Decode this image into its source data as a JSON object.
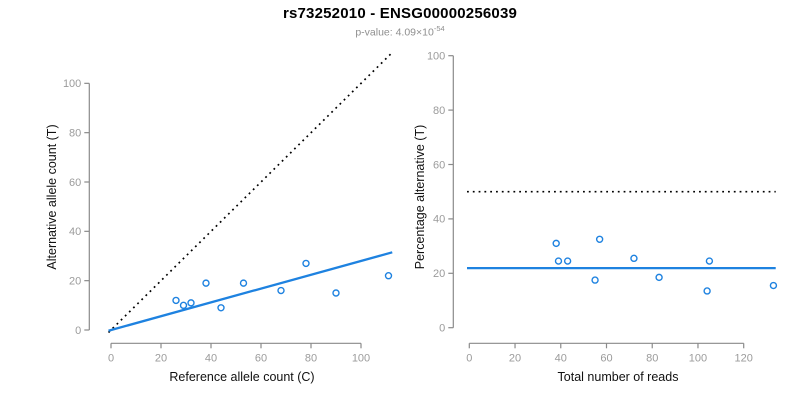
{
  "header": {
    "title": "rs73252010 - ENSG00000256039",
    "pvalue_base": "p-value: 4.09×10",
    "pvalue_exponent": "-54"
  },
  "colors": {
    "accent_blue": "#1E82E0",
    "line_black": "#000000",
    "axis": "#8a8a8a",
    "tick_label": "#9b9b9b",
    "title_text": "#000000",
    "subtitle_text": "#8f8f8f"
  },
  "chart_data": [
    {
      "id": "allele-counts-scatter",
      "type": "scatter",
      "xlabel": "Reference allele count (C)",
      "ylabel": "Alternative allele count (T)",
      "x_ticks": [
        0,
        20,
        40,
        60,
        80,
        100
      ],
      "y_ticks": [
        0,
        20,
        40,
        60,
        80,
        100
      ],
      "xlim": [
        -9,
        112
      ],
      "ylim": [
        -5,
        112
      ],
      "grid": false,
      "legend": null,
      "points": [
        [
          26,
          12
        ],
        [
          29,
          10
        ],
        [
          32,
          11
        ],
        [
          38,
          19
        ],
        [
          44,
          9
        ],
        [
          53,
          19
        ],
        [
          68,
          16
        ],
        [
          78,
          27
        ],
        [
          90,
          15
        ],
        [
          111,
          22
        ]
      ],
      "lines": [
        {
          "name": "identity-line",
          "style": "dotted",
          "color": "black",
          "x0": -1,
          "y0": -1,
          "x1": 112.5,
          "y1": 112.5
        },
        {
          "name": "fit-line",
          "style": "solid",
          "color": "blue",
          "slope": 0.28,
          "x0": -1,
          "y0": -0.3,
          "x1": 112.5,
          "y1": 31.5
        }
      ]
    },
    {
      "id": "percentage-vs-depth-scatter",
      "type": "scatter",
      "xlabel": "Total number of reads",
      "ylabel": "Percentage alternative (T)",
      "x_ticks": [
        0,
        20,
        40,
        60,
        80,
        100,
        120
      ],
      "y_ticks": [
        0,
        20,
        40,
        60,
        80,
        100
      ],
      "xlim": [
        -7,
        135
      ],
      "ylim": [
        -6,
        100
      ],
      "grid": false,
      "legend": null,
      "points": [
        [
          38,
          31
        ],
        [
          39,
          24.5
        ],
        [
          43,
          24.5
        ],
        [
          55,
          17.5
        ],
        [
          57,
          32.5
        ],
        [
          72,
          25.5
        ],
        [
          83,
          18.5
        ],
        [
          104,
          13.5
        ],
        [
          105,
          24.5
        ],
        [
          133,
          15.5
        ]
      ],
      "lines": [
        {
          "name": "expected-50pct-line",
          "style": "dotted",
          "color": "black",
          "x0": -1,
          "y0": 50,
          "x1": 134,
          "y1": 50
        },
        {
          "name": "mean-percentage-line",
          "style": "solid",
          "color": "blue",
          "x0": -1,
          "y0": 21.9,
          "x1": 134,
          "y1": 21.9
        }
      ]
    }
  ]
}
